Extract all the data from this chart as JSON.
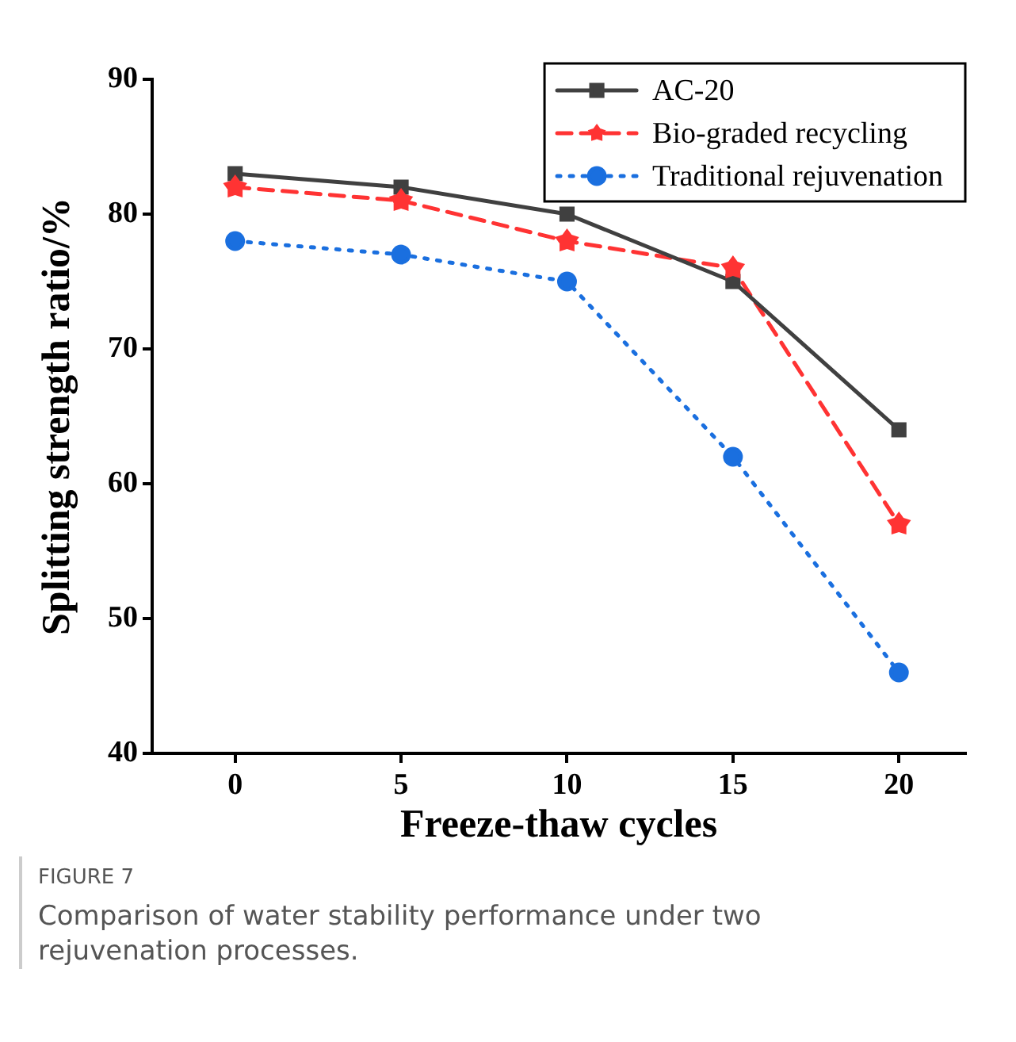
{
  "chart_data": {
    "type": "line",
    "xlabel": "Freeze-thaw cycles",
    "ylabel": "Splitting strength ratio/%",
    "x": [
      0,
      5,
      10,
      15,
      20
    ],
    "xlim": [
      -2.5,
      22
    ],
    "xticks": [
      0,
      5,
      10,
      15,
      20
    ],
    "ylim": [
      40,
      90
    ],
    "yticks": [
      40,
      50,
      60,
      70,
      80,
      90
    ],
    "series": [
      {
        "name": "AC-20",
        "color": "#404040",
        "marker": "square",
        "line_style": "solid",
        "values": [
          83,
          82,
          80,
          75,
          64
        ]
      },
      {
        "name": "Bio-graded recycling",
        "color": "#ff3333",
        "marker": "star",
        "line_style": "dashed",
        "values": [
          82,
          81,
          78,
          76,
          57
        ]
      },
      {
        "name": "Traditional rejuvenation",
        "color": "#1a6fdf",
        "marker": "circle",
        "line_style": "dotted",
        "values": [
          78,
          77,
          75,
          62,
          46
        ]
      }
    ],
    "legend": "top right",
    "grid": false,
    "annotations": [
      "FIGURE 7",
      "Comparison of water stability performance under two rejuvenation processes."
    ]
  }
}
